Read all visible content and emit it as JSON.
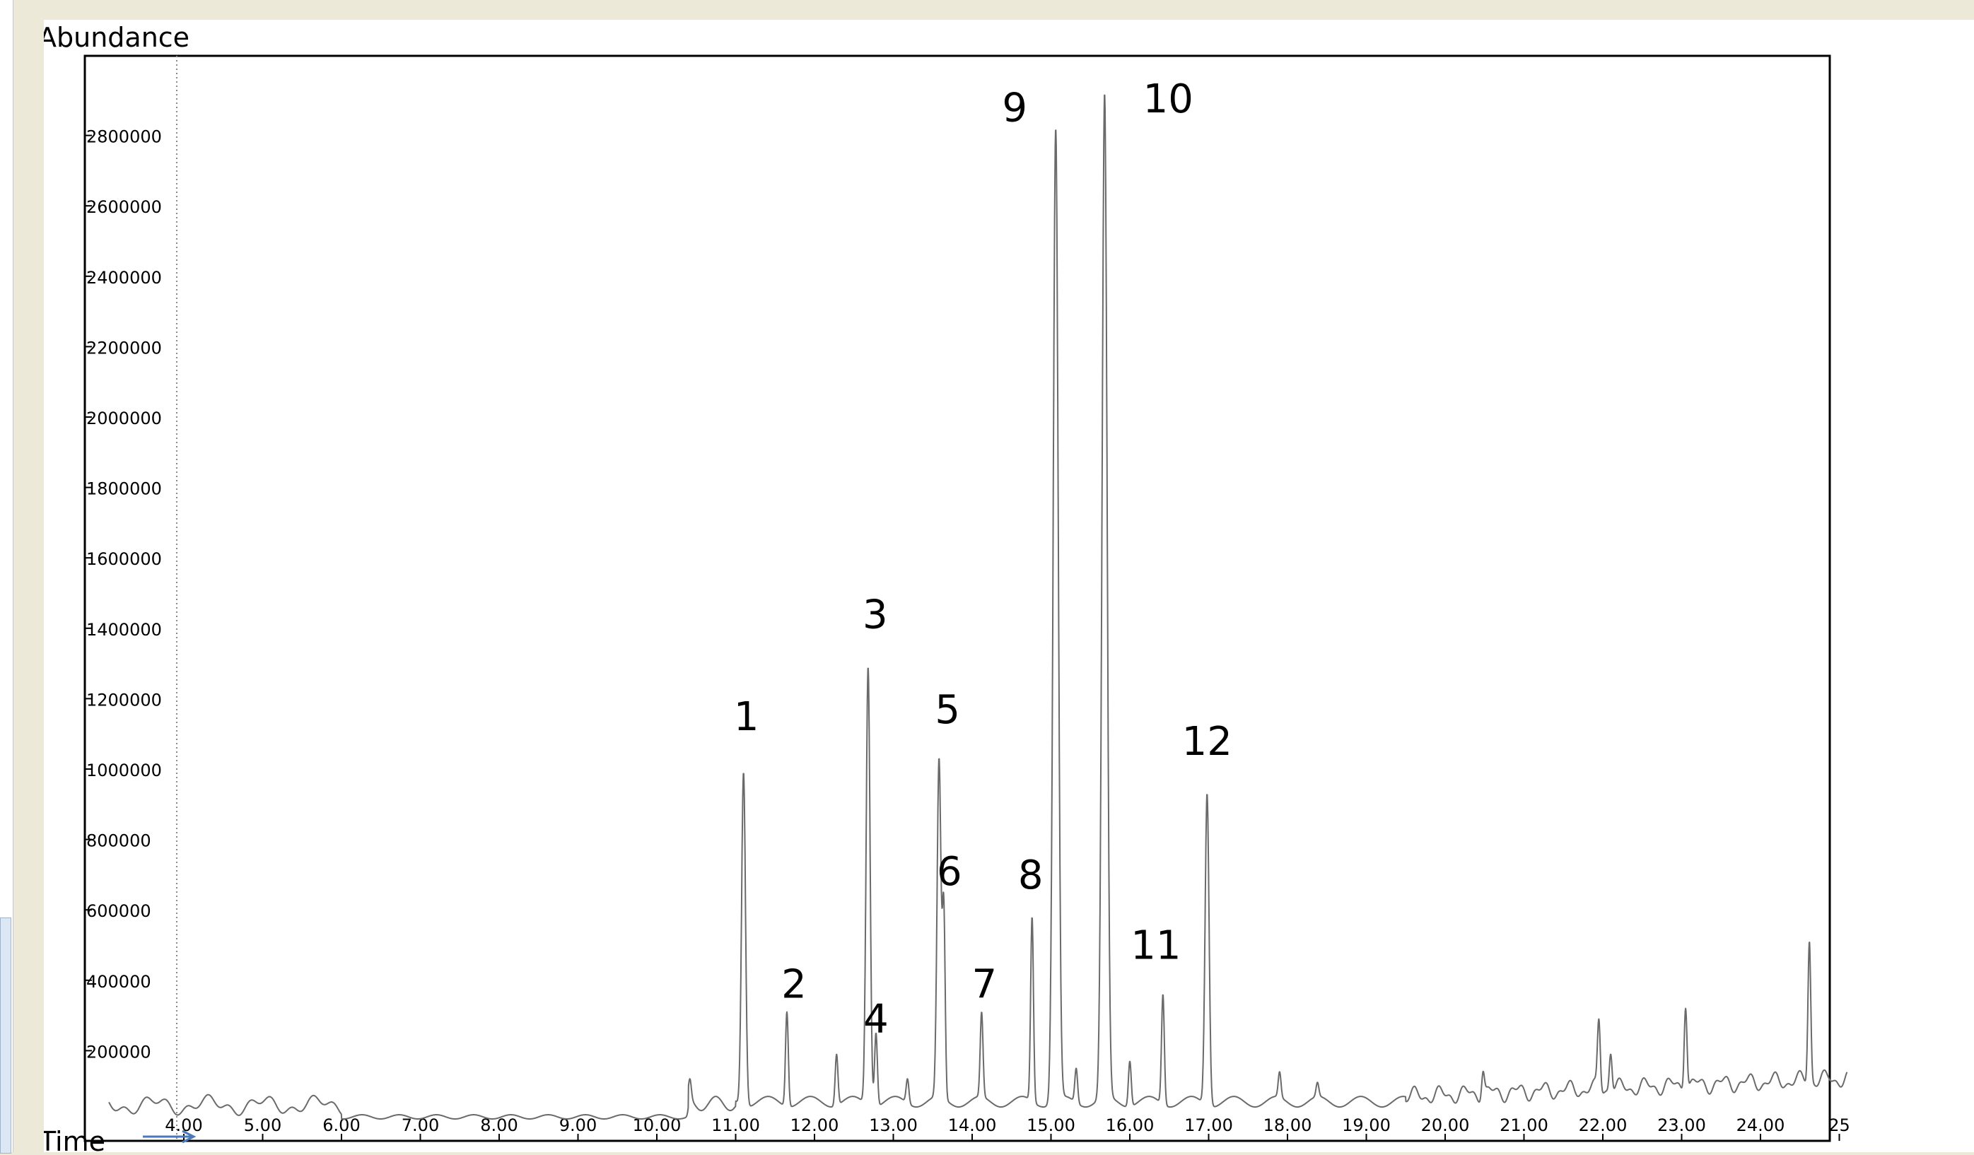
{
  "chart_data": {
    "type": "line",
    "ylabel": "Abundance",
    "xlabel": "Time",
    "xlim": [
      3.05,
      25.1
    ],
    "ylim": [
      0,
      2920000
    ],
    "x_ticks": [
      "4.00",
      "5.00",
      "6.00",
      "7.00",
      "8.00",
      "9.00",
      "10.00",
      "11.00",
      "12.00",
      "13.00",
      "14.00",
      "15.00",
      "16.00",
      "17.00",
      "18.00",
      "19.00",
      "20.00",
      "21.00",
      "22.00",
      "23.00",
      "24.00",
      "25"
    ],
    "y_ticks": [
      "200000",
      "400000",
      "600000",
      "800000",
      "1000000",
      "1200000",
      "1400000",
      "1600000",
      "1800000",
      "2000000",
      "2200000",
      "2400000",
      "2600000",
      "2800000"
    ],
    "grid": false,
    "peaks": [
      {
        "label": "1",
        "x": 11.1,
        "y": 990000
      },
      {
        "label": "2",
        "x": 11.65,
        "y": 310000
      },
      {
        "label": "3",
        "x": 12.68,
        "y": 1290000
      },
      {
        "label": "4",
        "x": 12.78,
        "y": 250000
      },
      {
        "label": "5",
        "x": 13.58,
        "y": 1030000
      },
      {
        "label": "6",
        "x": 13.64,
        "y": 590000
      },
      {
        "label": "7",
        "x": 14.12,
        "y": 310000
      },
      {
        "label": "8",
        "x": 14.76,
        "y": 580000
      },
      {
        "label": "9",
        "x": 15.06,
        "y": 2820000
      },
      {
        "label": "10",
        "x": 15.68,
        "y": 2920000
      },
      {
        "label": "11",
        "x": 16.42,
        "y": 360000
      },
      {
        "label": "12",
        "x": 16.98,
        "y": 930000
      }
    ],
    "minor_peaks": [
      {
        "x": 10.42,
        "y": 120000
      },
      {
        "x": 12.28,
        "y": 190000
      },
      {
        "x": 13.18,
        "y": 120000
      },
      {
        "x": 15.32,
        "y": 150000
      },
      {
        "x": 16.0,
        "y": 170000
      },
      {
        "x": 17.9,
        "y": 140000
      },
      {
        "x": 18.38,
        "y": 110000
      },
      {
        "x": 20.48,
        "y": 140000
      },
      {
        "x": 21.95,
        "y": 290000
      },
      {
        "x": 22.1,
        "y": 190000
      },
      {
        "x": 23.05,
        "y": 320000
      },
      {
        "x": 24.62,
        "y": 510000
      }
    ],
    "colors": {
      "trace": "#6a6a6a",
      "axis": "#000000",
      "arrow": "#4a78b8"
    }
  }
}
